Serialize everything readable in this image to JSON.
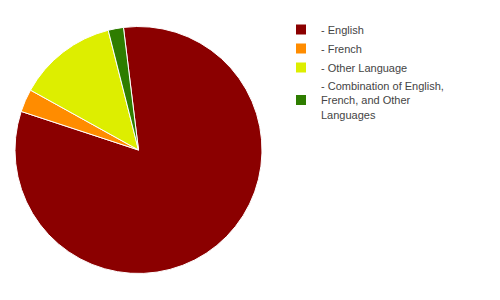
{
  "chart_data": {
    "type": "pie",
    "categories": [
      "- English",
      "- French",
      "- Other Language",
      "- Combination of English,\nFrench, and Other\nLanguages"
    ],
    "values": [
      82,
      3,
      13,
      2
    ],
    "colors": [
      "#8B0000",
      "#FF8C00",
      "#DDEE00",
      "#2E7D00"
    ],
    "legend": "upper right"
  }
}
